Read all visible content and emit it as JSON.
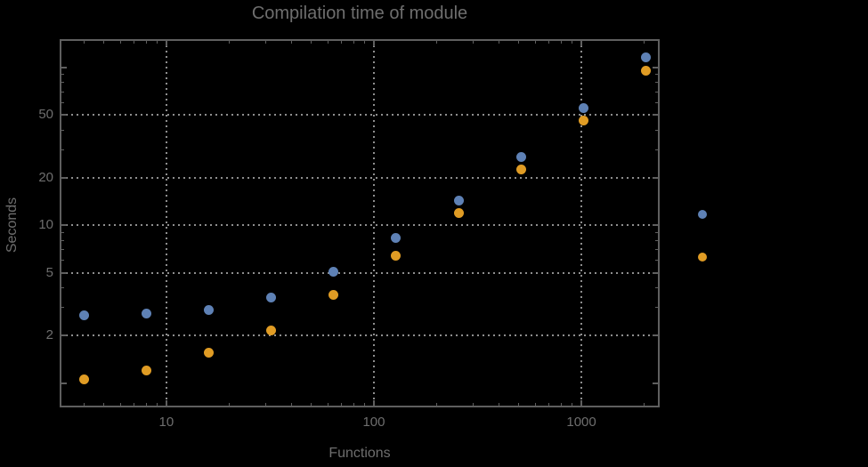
{
  "chart_data": {
    "type": "scatter",
    "title": "Compilation time of module",
    "xlabel": "Functions",
    "ylabel": "Seconds",
    "x_scale": "log",
    "y_scale": "log",
    "background": "#000000",
    "x": [
      4,
      8,
      16,
      32,
      64,
      128,
      256,
      512,
      1024,
      2048
    ],
    "series": [
      {
        "id": "series-1",
        "color": "#5E81B5",
        "values": [
          2.7,
          2.75,
          2.9,
          3.5,
          5.1,
          8.3,
          14.4,
          27,
          55,
          116
        ]
      },
      {
        "id": "series-2",
        "color": "#E09C24",
        "values": [
          1.05,
          1.2,
          1.55,
          2.15,
          3.6,
          6.4,
          11.9,
          22.5,
          46,
          95
        ]
      }
    ],
    "xlim": [
      3.09,
      2360
    ],
    "ylim": [
      0.71,
      149
    ],
    "x_ticks_labeled": [
      {
        "value": 10,
        "label": "10"
      },
      {
        "value": 100,
        "label": "100"
      },
      {
        "value": 1000,
        "label": "1000"
      }
    ],
    "y_ticks_labeled": [
      {
        "value": 2,
        "label": "2"
      },
      {
        "value": 5,
        "label": "5"
      },
      {
        "value": 10,
        "label": "10"
      },
      {
        "value": 20,
        "label": "20"
      },
      {
        "value": 50,
        "label": "50"
      }
    ],
    "y_ticks_major_unlabeled": [
      1,
      100
    ],
    "x_ticks_minor": [
      4,
      5,
      6,
      7,
      8,
      9,
      20,
      30,
      40,
      50,
      60,
      70,
      80,
      90,
      200,
      300,
      400,
      500,
      600,
      700,
      800,
      900,
      2000
    ],
    "y_ticks_minor": [
      3,
      4,
      6,
      7,
      8,
      9,
      30,
      40,
      60,
      70,
      80,
      90
    ],
    "x_gridlines": [
      10,
      100,
      1000
    ],
    "y_gridlines": [
      2,
      5,
      10,
      20,
      50
    ],
    "grid_style": "dotted",
    "legend": {
      "labels_visible": false,
      "markers": [
        {
          "series": "series-1",
          "color": "#5E81B5"
        },
        {
          "series": "series-2",
          "color": "#E09C24"
        }
      ]
    },
    "colors": {
      "frame": "#5f5f5f",
      "grid": "#8e8e8e",
      "text": "#6e6e6e",
      "background": "#000000"
    }
  }
}
